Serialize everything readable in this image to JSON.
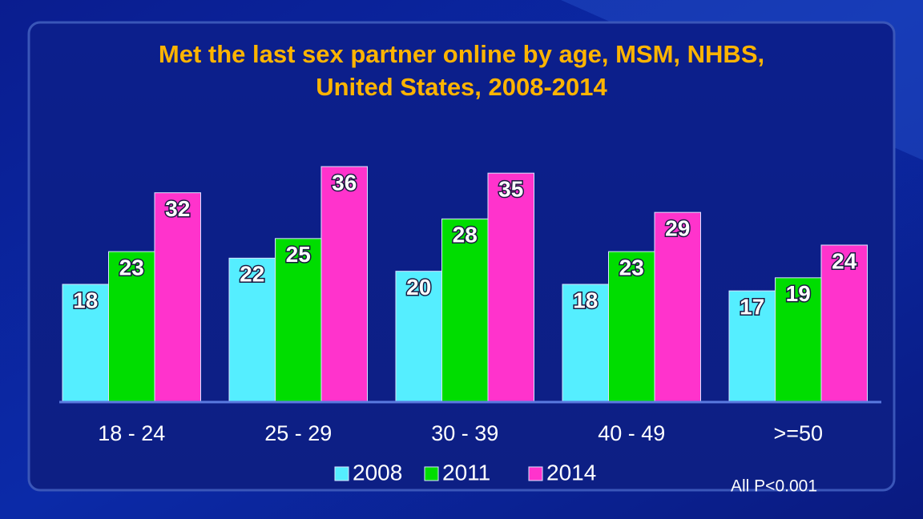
{
  "chart_data": {
    "type": "bar",
    "title": "Met the last sex partner online by age, MSM, NHBS,",
    "subtitle": "United States, 2008-2014",
    "categories": [
      "18 - 24",
      "25 - 29",
      "30 - 39",
      "40 - 49",
      ">=50"
    ],
    "series": [
      {
        "name": "2008",
        "color": "#55eeff",
        "values": [
          18,
          22,
          20,
          18,
          17
        ]
      },
      {
        "name": "2011",
        "color": "#00dd00",
        "values": [
          23,
          25,
          28,
          23,
          19
        ]
      },
      {
        "name": "2014",
        "color": "#ff33cc",
        "values": [
          32,
          36,
          35,
          29,
          24
        ]
      }
    ],
    "ylim": [
      0,
      60
    ],
    "annotation": "All P<0.001"
  }
}
